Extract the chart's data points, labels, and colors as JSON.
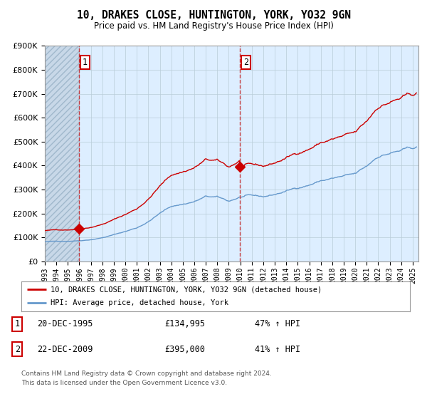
{
  "title": "10, DRAKES CLOSE, HUNTINGTON, YORK, YO32 9GN",
  "subtitle": "Price paid vs. HM Land Registry's House Price Index (HPI)",
  "red_label": "10, DRAKES CLOSE, HUNTINGTON, YORK, YO32 9GN (detached house)",
  "blue_label": "HPI: Average price, detached house, York",
  "point1_date": "20-DEC-1995",
  "point1_price": 134995,
  "point1_pct": "47% ↑ HPI",
  "point2_date": "22-DEC-2009",
  "point2_price": 395000,
  "point2_pct": "41% ↑ HPI",
  "footer": "Contains HM Land Registry data © Crown copyright and database right 2024.\nThis data is licensed under the Open Government Licence v3.0.",
  "ylim": [
    0,
    900000
  ],
  "yticks": [
    0,
    100000,
    200000,
    300000,
    400000,
    500000,
    600000,
    700000,
    800000,
    900000
  ],
  "xlim_start": 1993.0,
  "xlim_end": 2025.5,
  "red_color": "#cc0000",
  "blue_color": "#6699cc",
  "hatch_color": "#c8d8e8",
  "bg_color": "#ddeeff",
  "grid_color": "#b8ccd8",
  "point1_x": 1995.97,
  "point2_x": 2009.97
}
